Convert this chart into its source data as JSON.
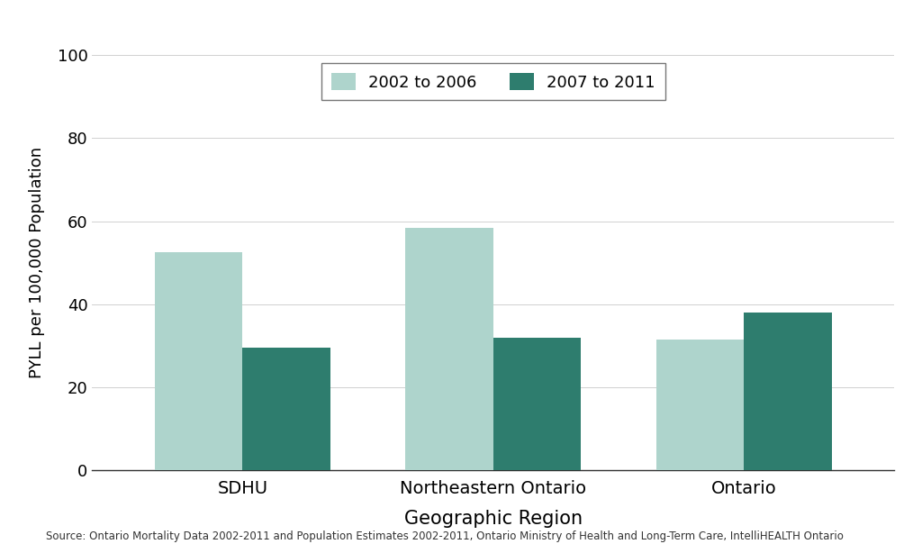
{
  "categories": [
    "SDHU",
    "Northeastern Ontario",
    "Ontario"
  ],
  "series": {
    "2002 to 2006": [
      52.5,
      58.5,
      31.5
    ],
    "2007 to 2011": [
      29.5,
      32.0,
      38.0
    ]
  },
  "colors": {
    "2002 to 2006": "#aed4cc",
    "2007 to 2011": "#2e7d6e"
  },
  "ylabel": "PYLL per 100,000 Population",
  "xlabel": "Geographic Region",
  "ylim": [
    0,
    100
  ],
  "yticks": [
    0,
    20,
    40,
    60,
    80,
    100
  ],
  "legend_labels": [
    "2002 to 2006",
    "2007 to 2011"
  ],
  "source_text": "Source: Ontario Mortality Data 2002-2011 and Population Estimates 2002-2011, Ontario Ministry of Health and Long-Term Care, IntelliHEALTH Ontario",
  "bar_width": 0.35,
  "background_color": "#ffffff",
  "grid_color": "#d0d0d0"
}
